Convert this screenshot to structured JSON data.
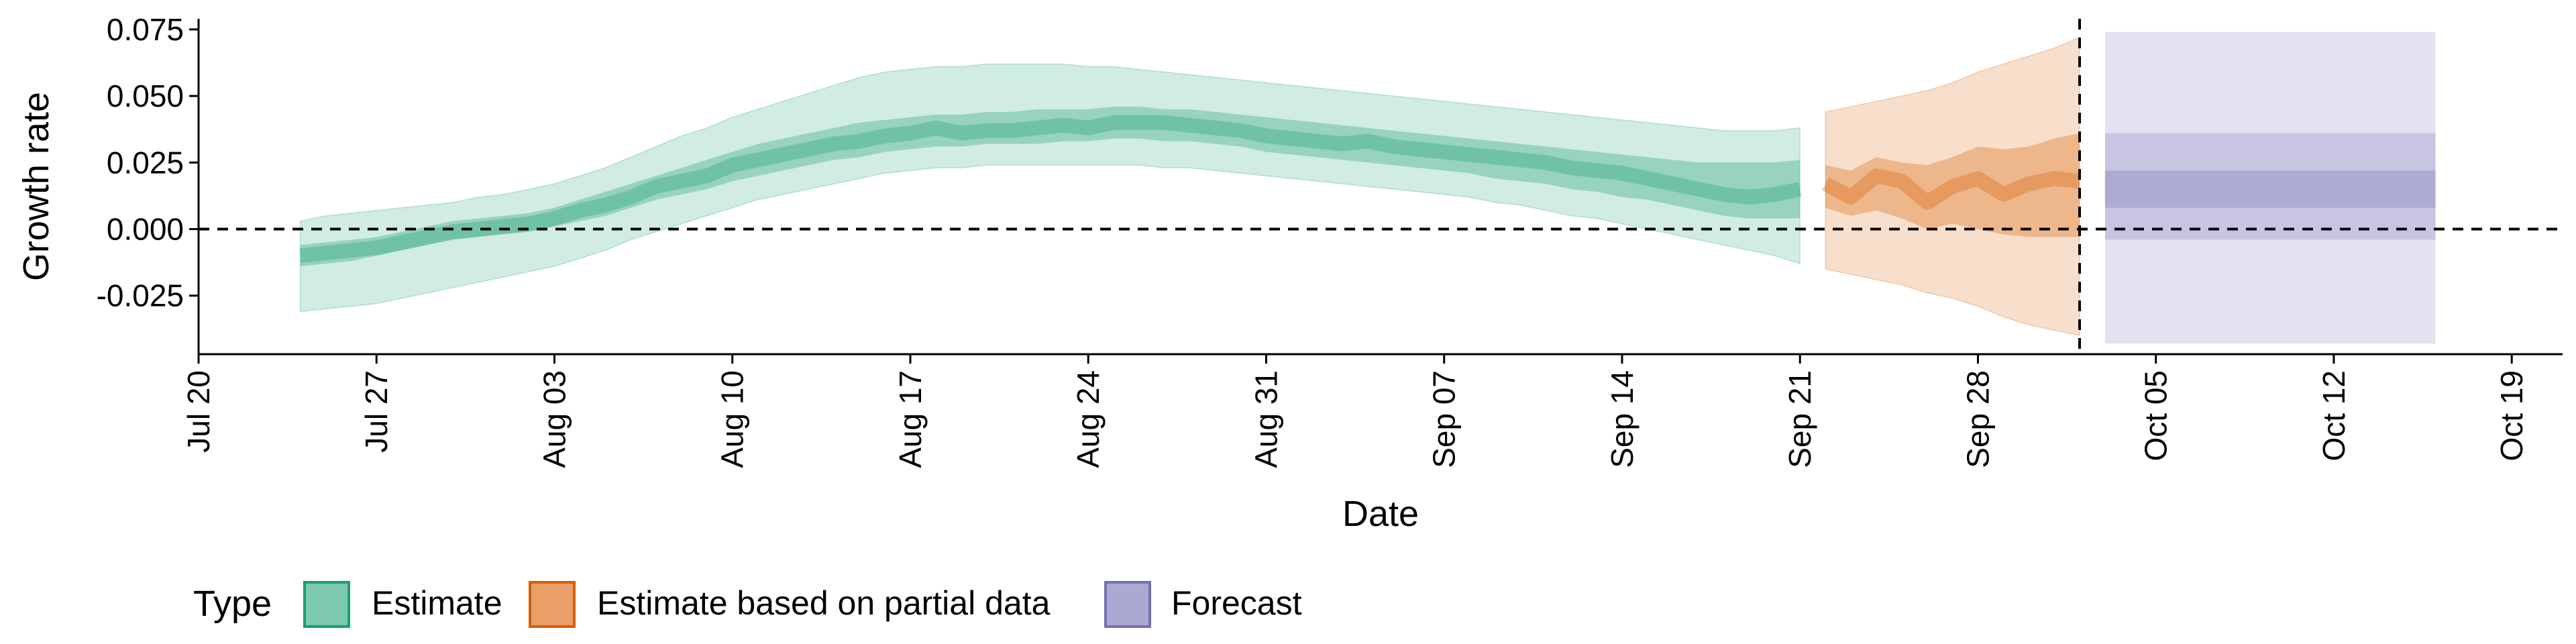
{
  "chart_data": {
    "type": "area",
    "xlabel": "Date",
    "ylabel": "Growth rate",
    "x_ticks": [
      "Jul 20",
      "Jul 27",
      "Aug 03",
      "Aug 10",
      "Aug 17",
      "Aug 24",
      "Aug 31",
      "Sep 07",
      "Sep 14",
      "Sep 21",
      "Sep 28",
      "Oct 05",
      "Oct 12",
      "Oct 19"
    ],
    "x_tick_dates": [
      "2020-07-20",
      "2020-07-27",
      "2020-08-03",
      "2020-08-10",
      "2020-08-17",
      "2020-08-24",
      "2020-08-31",
      "2020-09-07",
      "2020-09-14",
      "2020-09-21",
      "2020-09-28",
      "2020-10-05",
      "2020-10-12",
      "2020-10-19"
    ],
    "y_ticks": [
      "0.075",
      "0.050",
      "0.025",
      "0.000",
      "-0.025"
    ],
    "y_tick_values": [
      0.075,
      0.05,
      0.025,
      0.0,
      -0.025
    ],
    "ylim": [
      -0.047,
      0.079
    ],
    "xlim": [
      "2020-07-20",
      "2020-10-21"
    ],
    "grid": false,
    "reference_lines": [
      {
        "orientation": "horizontal",
        "y": 0,
        "style": "dashed"
      },
      {
        "orientation": "vertical",
        "x": "2020-10-02",
        "style": "dashed"
      }
    ],
    "legend": {
      "title": "Type",
      "position": "bottom",
      "items": [
        {
          "label": "Estimate",
          "fill": "#7cc9ad",
          "stroke": "#1b9e77"
        },
        {
          "label": "Estimate based on partial data",
          "fill": "#ea9e68",
          "stroke": "#d95f02"
        },
        {
          "label": "Forecast",
          "fill": "#aba9d3",
          "stroke": "#7570b3"
        }
      ]
    },
    "series": [
      {
        "name": "Estimate",
        "color": "#1b9e77",
        "x": [
          "2020-07-24",
          "2020-07-25",
          "2020-07-26",
          "2020-07-27",
          "2020-07-28",
          "2020-07-29",
          "2020-07-30",
          "2020-07-31",
          "2020-08-01",
          "2020-08-02",
          "2020-08-03",
          "2020-08-04",
          "2020-08-05",
          "2020-08-06",
          "2020-08-07",
          "2020-08-08",
          "2020-08-09",
          "2020-08-10",
          "2020-08-11",
          "2020-08-12",
          "2020-08-13",
          "2020-08-14",
          "2020-08-15",
          "2020-08-16",
          "2020-08-17",
          "2020-08-18",
          "2020-08-19",
          "2020-08-20",
          "2020-08-21",
          "2020-08-22",
          "2020-08-23",
          "2020-08-24",
          "2020-08-25",
          "2020-08-26",
          "2020-08-27",
          "2020-08-28",
          "2020-08-29",
          "2020-08-30",
          "2020-08-31",
          "2020-09-01",
          "2020-09-02",
          "2020-09-03",
          "2020-09-04",
          "2020-09-05",
          "2020-09-06",
          "2020-09-07",
          "2020-09-08",
          "2020-09-09",
          "2020-09-10",
          "2020-09-11",
          "2020-09-12",
          "2020-09-13",
          "2020-09-14",
          "2020-09-15",
          "2020-09-16",
          "2020-09-17",
          "2020-09-18",
          "2020-09-19",
          "2020-09-20",
          "2020-09-21"
        ],
        "median": [
          -0.01,
          -0.009,
          -0.008,
          -0.007,
          -0.005,
          -0.003,
          -0.001,
          0.0,
          0.001,
          0.002,
          0.004,
          0.007,
          0.009,
          0.012,
          0.016,
          0.018,
          0.02,
          0.024,
          0.026,
          0.028,
          0.03,
          0.032,
          0.033,
          0.035,
          0.036,
          0.038,
          0.036,
          0.037,
          0.037,
          0.038,
          0.039,
          0.038,
          0.04,
          0.04,
          0.04,
          0.039,
          0.038,
          0.037,
          0.035,
          0.034,
          0.033,
          0.032,
          0.033,
          0.031,
          0.03,
          0.029,
          0.028,
          0.027,
          0.026,
          0.025,
          0.023,
          0.022,
          0.021,
          0.019,
          0.017,
          0.015,
          0.013,
          0.012,
          0.013,
          0.015
        ],
        "lower_50": [
          -0.014,
          -0.013,
          -0.012,
          -0.01,
          -0.008,
          -0.006,
          -0.004,
          -0.003,
          -0.002,
          -0.001,
          0.001,
          0.003,
          0.005,
          0.008,
          0.011,
          0.013,
          0.015,
          0.018,
          0.02,
          0.022,
          0.024,
          0.026,
          0.027,
          0.029,
          0.03,
          0.031,
          0.031,
          0.032,
          0.032,
          0.032,
          0.033,
          0.033,
          0.034,
          0.034,
          0.033,
          0.033,
          0.032,
          0.031,
          0.029,
          0.028,
          0.027,
          0.026,
          0.025,
          0.024,
          0.023,
          0.022,
          0.021,
          0.019,
          0.018,
          0.017,
          0.015,
          0.014,
          0.012,
          0.011,
          0.009,
          0.007,
          0.005,
          0.004,
          0.004,
          0.004
        ],
        "upper_50": [
          -0.006,
          -0.005,
          -0.004,
          -0.003,
          -0.001,
          0.001,
          0.003,
          0.004,
          0.005,
          0.006,
          0.008,
          0.011,
          0.014,
          0.017,
          0.02,
          0.023,
          0.026,
          0.029,
          0.032,
          0.034,
          0.036,
          0.038,
          0.04,
          0.041,
          0.042,
          0.043,
          0.043,
          0.044,
          0.044,
          0.045,
          0.045,
          0.045,
          0.046,
          0.046,
          0.045,
          0.045,
          0.044,
          0.043,
          0.042,
          0.041,
          0.04,
          0.039,
          0.038,
          0.037,
          0.036,
          0.035,
          0.034,
          0.033,
          0.032,
          0.031,
          0.03,
          0.029,
          0.028,
          0.027,
          0.026,
          0.025,
          0.025,
          0.025,
          0.025,
          0.026
        ],
        "lower_90": [
          -0.031,
          -0.03,
          -0.029,
          -0.028,
          -0.026,
          -0.024,
          -0.022,
          -0.02,
          -0.018,
          -0.016,
          -0.014,
          -0.011,
          -0.008,
          -0.004,
          -0.001,
          0.002,
          0.005,
          0.008,
          0.011,
          0.013,
          0.015,
          0.017,
          0.019,
          0.021,
          0.022,
          0.023,
          0.023,
          0.024,
          0.024,
          0.024,
          0.024,
          0.024,
          0.024,
          0.024,
          0.023,
          0.023,
          0.022,
          0.021,
          0.02,
          0.019,
          0.018,
          0.017,
          0.016,
          0.015,
          0.014,
          0.013,
          0.012,
          0.01,
          0.009,
          0.007,
          0.005,
          0.004,
          0.002,
          0.0,
          -0.002,
          -0.004,
          -0.006,
          -0.008,
          -0.01,
          -0.013
        ],
        "upper_90": [
          0.003,
          0.005,
          0.006,
          0.007,
          0.008,
          0.009,
          0.01,
          0.012,
          0.013,
          0.015,
          0.017,
          0.02,
          0.023,
          0.027,
          0.031,
          0.035,
          0.038,
          0.042,
          0.045,
          0.048,
          0.051,
          0.054,
          0.057,
          0.059,
          0.06,
          0.061,
          0.061,
          0.062,
          0.062,
          0.062,
          0.062,
          0.061,
          0.061,
          0.06,
          0.059,
          0.058,
          0.057,
          0.056,
          0.055,
          0.054,
          0.053,
          0.052,
          0.051,
          0.05,
          0.049,
          0.048,
          0.047,
          0.046,
          0.045,
          0.044,
          0.043,
          0.042,
          0.041,
          0.04,
          0.039,
          0.038,
          0.037,
          0.037,
          0.037,
          0.038
        ]
      },
      {
        "name": "Estimate based on partial data",
        "color": "#d95f02",
        "x": [
          "2020-09-22",
          "2020-09-23",
          "2020-09-24",
          "2020-09-25",
          "2020-09-26",
          "2020-09-27",
          "2020-09-28",
          "2020-09-29",
          "2020-09-30",
          "2020-10-01",
          "2020-10-02"
        ],
        "median": [
          0.017,
          0.012,
          0.02,
          0.018,
          0.01,
          0.016,
          0.019,
          0.013,
          0.017,
          0.019,
          0.018
        ],
        "lower_50": [
          0.008,
          0.005,
          0.007,
          0.004,
          0.0,
          0.002,
          0.0,
          -0.002,
          -0.003,
          -0.003,
          -0.003
        ],
        "upper_50": [
          0.024,
          0.022,
          0.027,
          0.025,
          0.024,
          0.027,
          0.031,
          0.03,
          0.031,
          0.034,
          0.036
        ],
        "lower_90": [
          -0.015,
          -0.017,
          -0.019,
          -0.021,
          -0.024,
          -0.026,
          -0.029,
          -0.033,
          -0.036,
          -0.038,
          -0.04
        ],
        "upper_90": [
          0.044,
          0.046,
          0.048,
          0.05,
          0.052,
          0.055,
          0.059,
          0.062,
          0.065,
          0.068,
          0.072
        ]
      },
      {
        "name": "Forecast",
        "color": "#7570b3",
        "x": [
          "2020-10-03",
          "2020-10-16"
        ],
        "lower_30": [
          0.008,
          0.008
        ],
        "upper_30": [
          0.022,
          0.022
        ],
        "lower_60": [
          -0.004,
          -0.004
        ],
        "upper_60": [
          0.036,
          0.036
        ],
        "lower_90": [
          -0.043,
          -0.043
        ],
        "upper_90": [
          0.074,
          0.074
        ]
      }
    ]
  }
}
